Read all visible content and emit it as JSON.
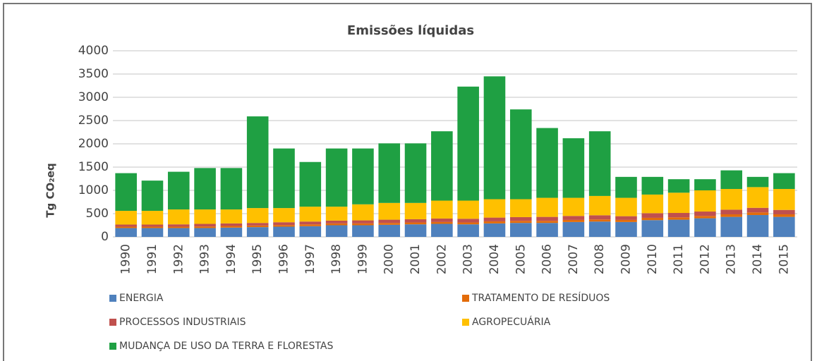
{
  "chart_data": {
    "type": "stacked_bar",
    "title": "Emissões líquidas",
    "y_label": "Tg CO₂eq",
    "categories": [
      "1990",
      "1991",
      "1992",
      "1993",
      "1994",
      "1995",
      "1996",
      "1997",
      "1998",
      "1999",
      "2000",
      "2001",
      "2002",
      "2003",
      "2004",
      "2005",
      "2006",
      "2007",
      "2008",
      "2009",
      "2010",
      "2011",
      "2012",
      "2013",
      "2014",
      "2015"
    ],
    "series": [
      {
        "name": "ENERGIA",
        "color": "#4f81bd",
        "values": [
          190,
          190,
          190,
          190,
          200,
          210,
          220,
          230,
          250,
          250,
          260,
          270,
          280,
          270,
          290,
          300,
          300,
          320,
          330,
          320,
          360,
          370,
          400,
          430,
          470,
          430
        ]
      },
      {
        "name": "TRATAMENTO DE RESÍDUOS",
        "color": "#e36c0a",
        "values": [
          30,
          30,
          30,
          35,
          35,
          35,
          35,
          40,
          40,
          40,
          40,
          40,
          40,
          40,
          45,
          45,
          45,
          45,
          45,
          45,
          50,
          50,
          50,
          55,
          55,
          55
        ]
      },
      {
        "name": "PROCESSOS INDUSTRIAIS",
        "color": "#c0504d",
        "values": [
          45,
          45,
          50,
          55,
          55,
          55,
          60,
          60,
          60,
          65,
          70,
          70,
          75,
          80,
          80,
          80,
          85,
          85,
          90,
          80,
          100,
          95,
          95,
          100,
          100,
          95
        ]
      },
      {
        "name": "AGROPECUÁRIA",
        "color": "#ffc000",
        "values": [
          295,
          295,
          320,
          310,
          300,
          320,
          305,
          320,
          300,
          345,
          360,
          350,
          385,
          390,
          395,
          385,
          410,
          390,
          415,
          395,
          400,
          435,
          455,
          445,
          445,
          450
        ]
      },
      {
        "name": "MUDANÇA DE USO DA TERRA E FLORESTAS",
        "color": "#1fa043",
        "values": [
          810,
          650,
          810,
          890,
          890,
          1970,
          1280,
          960,
          1250,
          1200,
          1280,
          1280,
          1490,
          2450,
          2640,
          1930,
          1500,
          1280,
          1390,
          450,
          380,
          290,
          240,
          400,
          220,
          340
        ]
      }
    ],
    "ylim": [
      0,
      4000
    ],
    "yticks": [
      0,
      500,
      1000,
      1500,
      2000,
      2500,
      3000,
      3500,
      4000
    ],
    "grid": true
  }
}
